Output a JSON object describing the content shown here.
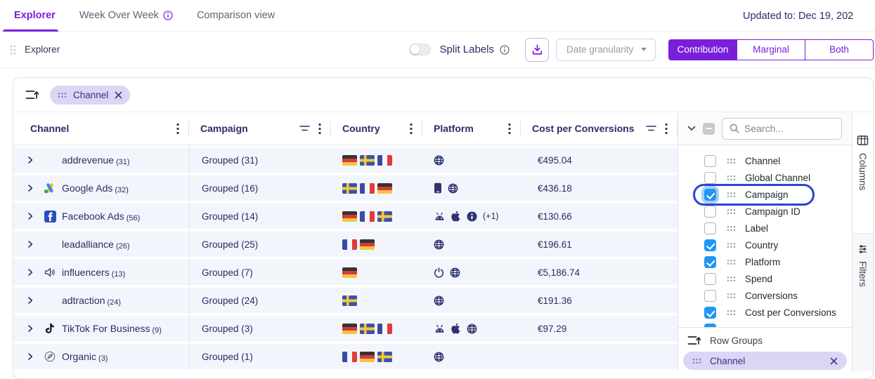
{
  "header": {
    "tabs": [
      {
        "label": "Explorer",
        "active": true,
        "info": false
      },
      {
        "label": "Week Over Week",
        "active": false,
        "info": true
      },
      {
        "label": "Comparison view",
        "active": false,
        "info": false
      }
    ],
    "updated": "Updated to: Dec 19, 202"
  },
  "toolbar": {
    "title": "Explorer",
    "split_labels_label": "Split Labels",
    "date_granularity_label": "Date granularity",
    "segments": [
      "Contribution",
      "Marginal",
      "Both"
    ],
    "active_segment": "Contribution",
    "accent_color": "#7a1fd9"
  },
  "filter_chip": {
    "label": "Channel"
  },
  "table": {
    "columns": [
      {
        "label": "Channel",
        "filter": false,
        "menu": true
      },
      {
        "label": "Campaign",
        "filter": true,
        "menu": true
      },
      {
        "label": "Country",
        "filter": false,
        "menu": true
      },
      {
        "label": "Platform",
        "filter": false,
        "menu": true
      },
      {
        "label": "Cost per Conversions",
        "filter": true,
        "menu": true
      }
    ],
    "rows": [
      {
        "channel": "addrevenue",
        "count": "(31)",
        "icon": null,
        "campaign": "Grouped (31)",
        "countries": [
          "de",
          "se",
          "fr"
        ],
        "platforms": [
          "globe"
        ],
        "extra": "",
        "cost": "€495.04"
      },
      {
        "channel": "Google Ads",
        "count": "(32)",
        "icon": "google-ads-logo",
        "campaign": "Grouped (16)",
        "countries": [
          "se",
          "fr",
          "de"
        ],
        "platforms": [
          "mobile",
          "globe"
        ],
        "extra": "",
        "cost": "€436.18"
      },
      {
        "channel": "Facebook Ads",
        "count": "(56)",
        "icon": "facebook-logo",
        "campaign": "Grouped (14)",
        "countries": [
          "de",
          "fr",
          "se"
        ],
        "platforms": [
          "android",
          "apple",
          "more"
        ],
        "extra": "(+1)",
        "cost": "€130.66"
      },
      {
        "channel": "leadalliance",
        "count": "(26)",
        "icon": null,
        "campaign": "Grouped (25)",
        "countries": [
          "fr",
          "de"
        ],
        "platforms": [
          "globe"
        ],
        "extra": "",
        "cost": "€196.61"
      },
      {
        "channel": "influencers",
        "count": "(13)",
        "icon": "speaker-icon",
        "campaign": "Grouped (7)",
        "countries": [
          "de"
        ],
        "platforms": [
          "power",
          "globe"
        ],
        "extra": "",
        "cost": "€5,186.74"
      },
      {
        "channel": "adtraction",
        "count": "(24)",
        "icon": null,
        "campaign": "Grouped (24)",
        "countries": [
          "se"
        ],
        "platforms": [
          "globe"
        ],
        "extra": "",
        "cost": "€191.36"
      },
      {
        "channel": "TikTok For Business",
        "count": "(9)",
        "icon": "tiktok-logo",
        "campaign": "Grouped (3)",
        "countries": [
          "de",
          "se",
          "fr"
        ],
        "platforms": [
          "android",
          "apple",
          "globe"
        ],
        "extra": "",
        "cost": "€97.29"
      },
      {
        "channel": "Organic",
        "count": "(3)",
        "icon": "organic-leaf-icon",
        "campaign": "Grouped (1)",
        "countries": [
          "fr",
          "de",
          "se"
        ],
        "platforms": [
          "globe"
        ],
        "extra": "",
        "cost": ""
      }
    ]
  },
  "sidebar": {
    "search_placeholder": "Search...",
    "items": [
      {
        "label": "Channel",
        "checked": false,
        "highlighted": false
      },
      {
        "label": "Global Channel",
        "checked": false,
        "highlighted": false
      },
      {
        "label": "Campaign",
        "checked": true,
        "highlighted": true
      },
      {
        "label": "Campaign ID",
        "checked": false,
        "highlighted": false
      },
      {
        "label": "Label",
        "checked": false,
        "highlighted": false
      },
      {
        "label": "Country",
        "checked": true,
        "highlighted": false
      },
      {
        "label": "Platform",
        "checked": true,
        "highlighted": false
      },
      {
        "label": "Spend",
        "checked": false,
        "highlighted": false
      },
      {
        "label": "Conversions",
        "checked": false,
        "highlighted": false
      },
      {
        "label": "Cost per Conversions",
        "checked": true,
        "highlighted": false
      },
      {
        "label": "",
        "checked": true,
        "highlighted": false
      }
    ],
    "row_groups": {
      "label": "Row Groups",
      "chips": [
        "Channel"
      ]
    },
    "checkbox_color": "#2196f3",
    "highlight_ring_color": "#2945d4"
  },
  "side_tabs": [
    {
      "label": "Columns",
      "active": true
    },
    {
      "label": "Filters",
      "active": false
    }
  ]
}
